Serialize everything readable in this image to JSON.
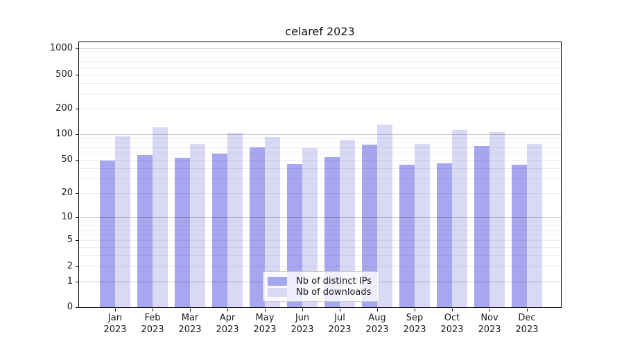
{
  "chart_data": {
    "type": "bar",
    "title": "celaref 2023",
    "year_label": "2023",
    "categories": [
      "Jan",
      "Feb",
      "Mar",
      "Apr",
      "May",
      "Jun",
      "Jul",
      "Aug",
      "Sep",
      "Oct",
      "Nov",
      "Dec"
    ],
    "series": [
      {
        "name": "Nb of distinct IPs",
        "color": "#a7a7f0",
        "values": [
          49,
          57,
          53,
          59,
          71,
          45,
          54,
          76,
          44,
          46,
          73,
          44
        ]
      },
      {
        "name": "Nb of downloads",
        "color": "#d9d9f6",
        "values": [
          95,
          122,
          77,
          104,
          94,
          69,
          86,
          130,
          78,
          112,
          107,
          78
        ]
      }
    ],
    "y_axis": {
      "ticks": [
        0,
        1,
        2,
        5,
        10,
        20,
        50,
        100,
        200,
        500,
        1000
      ],
      "scale": "log1p",
      "min": 0,
      "max": 1200
    },
    "x_axis": {
      "tick_label_format": "month over year"
    },
    "grid": {
      "major_values": [
        1,
        10,
        100,
        1000
      ],
      "minor_decades": [
        1,
        10,
        100
      ],
      "on": true
    },
    "legend": {
      "position": "bottom-center",
      "border": true
    }
  }
}
